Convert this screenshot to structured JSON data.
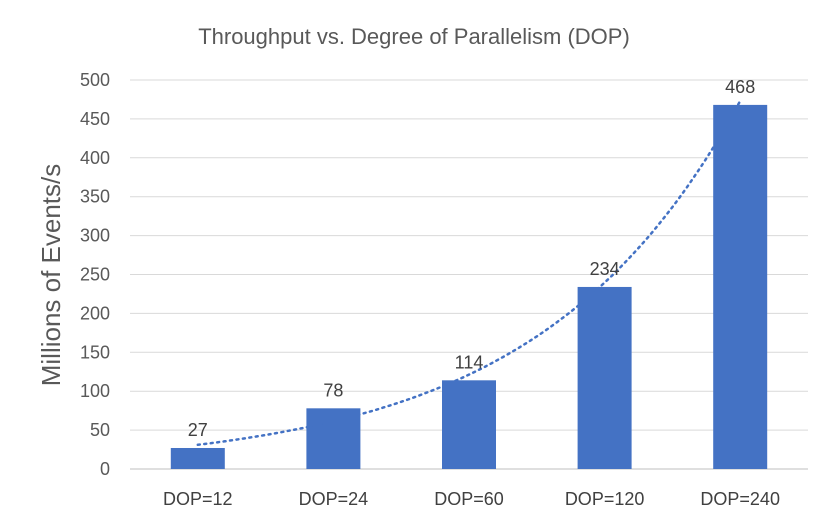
{
  "chart_data": {
    "type": "bar",
    "title": "Throughput vs. Degree of Parallelism (DOP)",
    "xlabel": "",
    "ylabel": "Millions of Events/s",
    "categories": [
      "DOP=12",
      "DOP=24",
      "DOP=60",
      "DOP=120",
      "DOP=240"
    ],
    "values": [
      27,
      78,
      114,
      234,
      468
    ],
    "ylim": [
      0,
      500
    ],
    "yticks": [
      0,
      50,
      100,
      150,
      200,
      250,
      300,
      350,
      400,
      450,
      500
    ],
    "grid": true,
    "legend": "none",
    "trendline": "exponential (dotted)",
    "bar_color": "#4472c4"
  }
}
